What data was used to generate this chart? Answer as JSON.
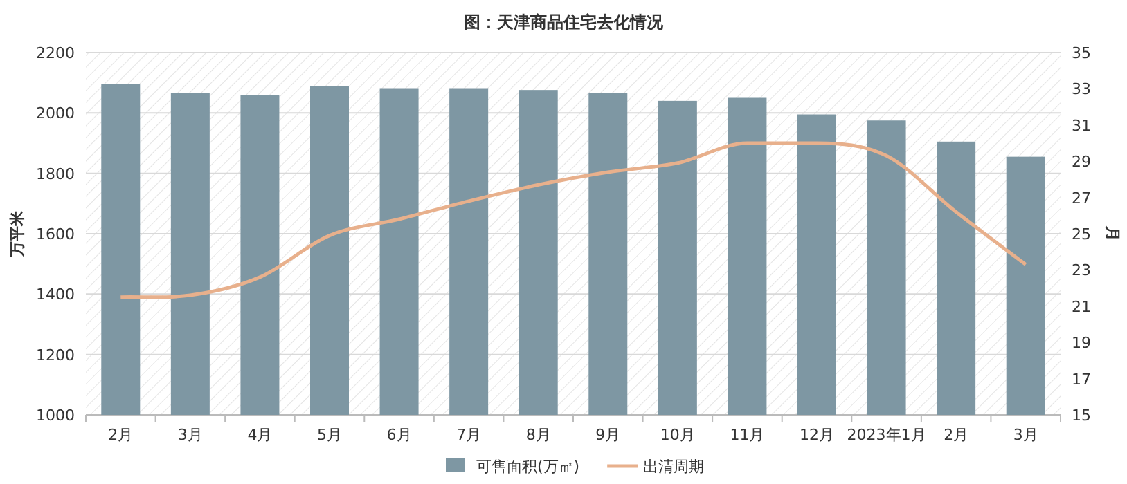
{
  "chart_data": {
    "type": "bar",
    "title": "图：天津商品住宅去化情况",
    "ylabel": "万平米",
    "y2label": "月",
    "categories": [
      "2月",
      "3月",
      "4月",
      "5月",
      "6月",
      "7月",
      "8月",
      "9月",
      "10月",
      "11月",
      "12月",
      "2023年1月",
      "2月",
      "3月"
    ],
    "series": [
      {
        "name": "可售面积(万㎡)",
        "color": "#7e97a3",
        "values": [
          2095,
          2065,
          2058,
          2090,
          2082,
          2082,
          2076,
          2067,
          2040,
          2050,
          1995,
          1975,
          1905,
          1855
        ]
      },
      {
        "name": "出清周期",
        "type": "line",
        "axis": "y2",
        "color": "#e8b08c",
        "values": [
          21.5,
          21.6,
          22.6,
          24.9,
          25.8,
          26.8,
          27.7,
          28.4,
          28.9,
          30.0,
          30.0,
          29.3,
          26.2,
          23.3
        ]
      }
    ],
    "ylim": [
      1000,
      2200
    ],
    "yticks": [
      1000,
      1200,
      1400,
      1600,
      1800,
      2000,
      2200
    ],
    "y2lim": [
      15,
      35
    ],
    "y2ticks": [
      15,
      17,
      19,
      21,
      23,
      25,
      27,
      29,
      31,
      33,
      35
    ],
    "grid": "y",
    "legend": "bottom"
  }
}
